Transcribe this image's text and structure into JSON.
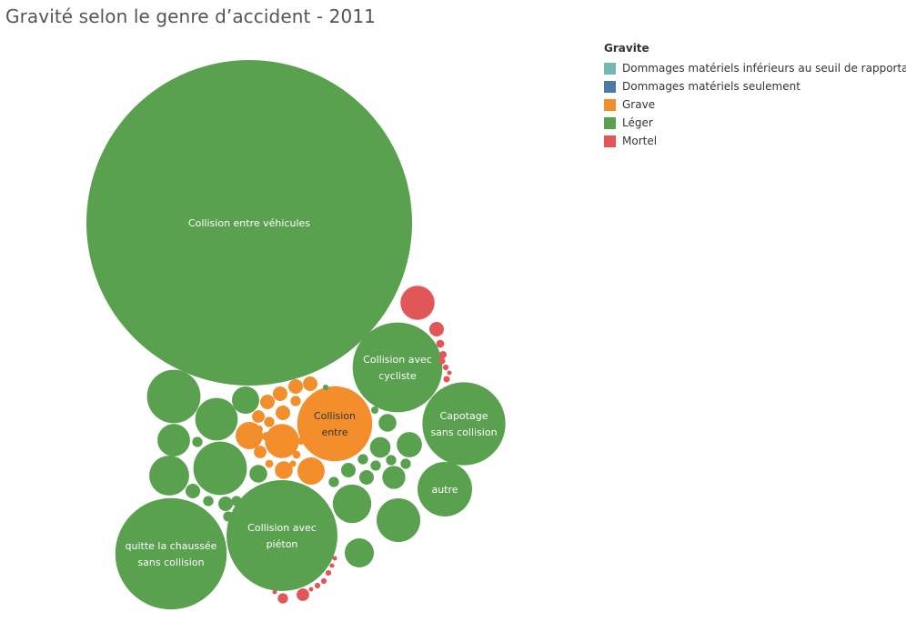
{
  "title": "Gravité selon le genre d’accident  - 2011",
  "legend": {
    "title": "Gravite",
    "items": [
      {
        "label": "Dommages matériels inférieurs au seuil de rapportage",
        "color": "#76b7b2"
      },
      {
        "label": "Dommages matériels seulement",
        "color": "#4e79a7"
      },
      {
        "label": "Grave",
        "color": "#f28e2b"
      },
      {
        "label": "Léger",
        "color": "#59a14f"
      },
      {
        "label": "Mortel",
        "color": "#e15759"
      }
    ]
  },
  "chart_data": {
    "type": "bubble",
    "size_measure": "number of accidents (relative, estimated from bubble area)",
    "series": [
      {
        "gravite": "Léger",
        "color": "#59a14f",
        "bubbles": [
          {
            "label": "Collision entre véhicules",
            "value": 1000
          },
          {
            "label": "Collision avec cycliste",
            "value": 76
          },
          {
            "label": "Capotage sans collision",
            "value": 65
          },
          {
            "label": "quitte la chaussée sans collision",
            "value": 117
          },
          {
            "label": "Collision avec piéton",
            "value": 116
          },
          {
            "label": "autre",
            "value": 28
          },
          {
            "label": "",
            "value": 27
          },
          {
            "label": "",
            "value": 27
          },
          {
            "label": "",
            "value": 18
          },
          {
            "label": "",
            "value": 14
          },
          {
            "label": "",
            "value": 8
          },
          {
            "label": "",
            "value": 17
          },
          {
            "label": "",
            "value": 15
          },
          {
            "label": "",
            "value": 10
          },
          {
            "label": "",
            "value": 7
          },
          {
            "label": "",
            "value": 6
          },
          {
            "label": "",
            "value": 5
          },
          {
            "label": "",
            "value": 4
          },
          {
            "label": "",
            "value": 3
          },
          {
            "label": "",
            "value": 3
          },
          {
            "label": "",
            "value": 2
          },
          {
            "label": "",
            "value": 2
          },
          {
            "label": "",
            "value": 2
          },
          {
            "label": "",
            "value": 2
          },
          {
            "label": "",
            "value": 1
          },
          {
            "label": "",
            "value": 1
          },
          {
            "label": "",
            "value": 1
          },
          {
            "label": "",
            "value": 1
          },
          {
            "label": "",
            "value": 1
          },
          {
            "label": "",
            "value": 1
          },
          {
            "label": "",
            "value": 1
          },
          {
            "label": "",
            "value": 1
          },
          {
            "label": "",
            "value": 1
          },
          {
            "label": "",
            "value": 0.5
          },
          {
            "label": "",
            "value": 0.3
          },
          {
            "label": "",
            "value": 0.3
          }
        ]
      },
      {
        "gravite": "Grave",
        "color": "#f28e2b",
        "bubbles": [
          {
            "label": "Collision entre",
            "value": 53
          },
          {
            "label": "",
            "value": 11
          },
          {
            "label": "",
            "value": 7
          },
          {
            "label": "",
            "value": 7
          },
          {
            "label": "",
            "value": 3
          },
          {
            "label": "",
            "value": 2
          },
          {
            "label": "",
            "value": 2
          },
          {
            "label": "",
            "value": 2
          },
          {
            "label": "",
            "value": 2
          },
          {
            "label": "",
            "value": 2
          },
          {
            "label": "",
            "value": 1.5
          },
          {
            "label": "",
            "value": 1.5
          },
          {
            "label": "",
            "value": 1
          },
          {
            "label": "",
            "value": 1
          },
          {
            "label": "",
            "value": 0.8
          },
          {
            "label": "",
            "value": 0.6
          },
          {
            "label": "",
            "value": 0.6
          },
          {
            "label": "",
            "value": 0.5
          },
          {
            "label": "",
            "value": 0.5
          },
          {
            "label": "",
            "value": 0.4
          }
        ]
      },
      {
        "gravite": "Mortel",
        "color": "#e15759",
        "bubbles": [
          {
            "label": "",
            "value": 11
          },
          {
            "label": "",
            "value": 2
          },
          {
            "label": "",
            "value": 1.5
          },
          {
            "label": "",
            "value": 1
          },
          {
            "label": "",
            "value": 0.6
          },
          {
            "label": "",
            "value": 0.5
          },
          {
            "label": "",
            "value": 0.4
          },
          {
            "label": "",
            "value": 0.4
          },
          {
            "label": "",
            "value": 0.3
          },
          {
            "label": "",
            "value": 0.3
          },
          {
            "label": "",
            "value": 0.3
          },
          {
            "label": "",
            "value": 0.3
          },
          {
            "label": "",
            "value": 0.2
          },
          {
            "label": "",
            "value": 0.2
          },
          {
            "label": "",
            "value": 0.2
          },
          {
            "label": "",
            "value": 0.2
          },
          {
            "label": "",
            "value": 0.2
          }
        ]
      }
    ]
  }
}
